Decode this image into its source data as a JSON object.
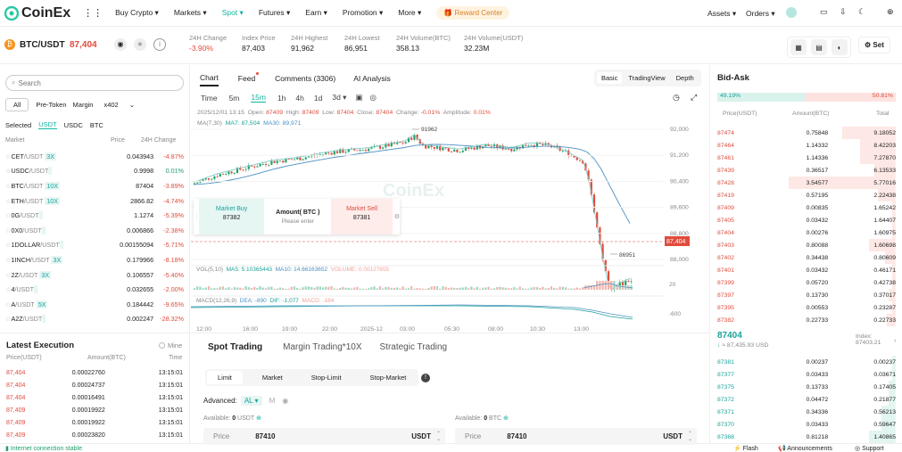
{
  "nav": {
    "brand": "CoinEx",
    "items": [
      "Buy Crypto",
      "Markets",
      "Spot",
      "Futures",
      "Earn",
      "Promotion",
      "More"
    ],
    "reward": "Reward Center",
    "assets": "Assets",
    "orders": "Orders"
  },
  "ticker": {
    "pair": "BTC/USDT",
    "price": "87,404",
    "stats": [
      {
        "label": "24H Change",
        "value": "-3.90%"
      },
      {
        "label": "Index Price",
        "value": "87,403"
      },
      {
        "label": "24H Highest",
        "value": "91,962"
      },
      {
        "label": "24H Lowest",
        "value": "86,951"
      },
      {
        "label": "24H Volume(BTC)",
        "value": "358.13"
      },
      {
        "label": "24H Volume(USDT)",
        "value": "32.23M"
      }
    ],
    "set": "Set"
  },
  "market": {
    "search_placeholder": "Search",
    "filters": [
      "All",
      "Pre-Token",
      "Margin",
      "x402"
    ],
    "quote_tabs": [
      "Selected",
      "USDT",
      "USDC",
      "BTC"
    ],
    "col_market": "Market",
    "col_price": "Price",
    "col_change": "24H Change",
    "rows": [
      {
        "base": "CET",
        "quote": "/USDT",
        "lev": "3X",
        "price": "0.043943",
        "change": "-4.87%"
      },
      {
        "base": "USDC",
        "quote": "/USDT",
        "lev": "",
        "price": "0.9998",
        "change": "0.01%"
      },
      {
        "base": "BTC",
        "quote": "/USDT",
        "lev": "10X",
        "price": "87404",
        "change": "-3.89%"
      },
      {
        "base": "ETH",
        "quote": "/USDT",
        "lev": "10X",
        "price": "2866.82",
        "change": "-4.74%"
      },
      {
        "base": "0G",
        "quote": "/USDT",
        "lev": "",
        "price": "1.1274",
        "change": "-5.39%"
      },
      {
        "base": "0X0",
        "quote": "/USDT",
        "lev": "",
        "price": "0.006866",
        "change": "-2.38%"
      },
      {
        "base": "1DOLLAR",
        "quote": "/USDT",
        "lev": "",
        "price": "0.00155094",
        "change": "-5.71%"
      },
      {
        "base": "1INCH",
        "quote": "/USDT",
        "lev": "3X",
        "price": "0.179966",
        "change": "-8.18%"
      },
      {
        "base": "2Z",
        "quote": "/USDT",
        "lev": "3X",
        "price": "0.106557",
        "change": "-5.40%"
      },
      {
        "base": "4",
        "quote": "/USDT",
        "lev": "",
        "price": "0.032655",
        "change": "-2.00%"
      },
      {
        "base": "A",
        "quote": "/USDT",
        "lev": "5X",
        "price": "0.184442",
        "change": "-9.65%"
      },
      {
        "base": "A2Z",
        "quote": "/USDT",
        "lev": "",
        "price": "0.002247",
        "change": "-28.32%"
      }
    ]
  },
  "latest": {
    "title": "Latest Execution",
    "mine": "Mine",
    "col_price": "Price(USDT)",
    "col_amount": "Amount(BTC)",
    "col_time": "Time",
    "rows": [
      {
        "price": "87,404",
        "amount": "0.00022760",
        "time": "13:15:01"
      },
      {
        "price": "87,404",
        "amount": "0.00024737",
        "time": "13:15:01"
      },
      {
        "price": "87,404",
        "amount": "0.00016491",
        "time": "13:15:01"
      },
      {
        "price": "87,409",
        "amount": "0.00019922",
        "time": "13:15:01"
      },
      {
        "price": "87,409",
        "amount": "0.00019922",
        "time": "13:15:01"
      },
      {
        "price": "87,409",
        "amount": "0.00023820",
        "time": "13:15:01"
      }
    ]
  },
  "status": {
    "conn": "Internet connection stable",
    "flash": "Flash",
    "announcements": "Announcements",
    "support": "Support"
  },
  "chart": {
    "tabs": [
      "Chart",
      "Feed",
      "Comments (3306)",
      "AI Analysis"
    ],
    "views": [
      "Basic",
      "TradingView",
      "Depth"
    ],
    "intervals": [
      "Time",
      "5m",
      "15m",
      "1h",
      "4h",
      "1d",
      "3d"
    ],
    "ohlc": {
      "date": "2025/12/01 13:15",
      "open": "87409",
      "high": "87409",
      "low": "87404",
      "close": "87404",
      "change": "-0.01%",
      "amplitude": "0.01%"
    },
    "ma": {
      "label": "MA(7,30)",
      "ma7": "MA7: 87,504",
      "ma30": "MA30: 89,971"
    },
    "vol": {
      "label": "VOL(5,10)",
      "ma5": "MA5: 5.10365443",
      "ma10": "MA10: 14.66163652",
      "volume": "VOLUME: 0.00127655"
    },
    "macd": {
      "label": "MACD(12,26,9)",
      "dea": "DEA: -890",
      "dif": "DIF: -1,077",
      "macd": "MACD: -184"
    },
    "yticks": [
      "92,000",
      "91,200",
      "90,400",
      "89,600",
      "88,800",
      "88,000"
    ],
    "vol_tick": "20",
    "macd_tick": "-600",
    "xticks": [
      "12:00",
      "16:00",
      "19:00",
      "22:00",
      "2025-12",
      "03:00",
      "05:30",
      "08:00",
      "10:30",
      "13:00"
    ],
    "hi_label": "91962",
    "lo_label": "86951",
    "last_price": "87,404",
    "watermark": "CoinEx",
    "quick": {
      "buy_label": "Market Buy",
      "buy_price": "87382",
      "amount_label": "Amount( BTC )",
      "amount_placeholder": "Please enter",
      "sell_label": "Market Sell",
      "sell_price": "87381"
    }
  },
  "trade": {
    "tabs": [
      "Spot Trading",
      "Margin Trading*10X",
      "Strategic Trading"
    ],
    "types": [
      "Limit",
      "Market",
      "Stop-Limit",
      "Stop-Market"
    ],
    "advanced": "Advanced:",
    "al": "AL",
    "m": "M",
    "avail_buy": "Available:",
    "avail_buy_val": "0",
    "avail_buy_unit": "USDT",
    "avail_sell": "Available:",
    "avail_sell_val": "0",
    "avail_sell_unit": "BTC",
    "price_label": "Price",
    "price_buy": "87410",
    "price_sell": "87410",
    "unit": "USDT"
  },
  "orderbook": {
    "title": "Bid-Ask",
    "buy_pct": "49.19%",
    "sell_pct": "50.81%",
    "col_price": "Price(USDT)",
    "col_amount": "Amount(BTC)",
    "col_total": "Total",
    "asks": [
      {
        "p": "87474",
        "a": "0.75848",
        "t": "9.18052",
        "d": 0.3
      },
      {
        "p": "87464",
        "a": "1.14332",
        "t": "8.42203",
        "d": 0.2
      },
      {
        "p": "87461",
        "a": "1.14336",
        "t": "7.27870",
        "d": 0.2
      },
      {
        "p": "87439",
        "a": "0.36517",
        "t": "6.13533",
        "d": 0.12
      },
      {
        "p": "87428",
        "a": "3.54577",
        "t": "5.77016",
        "d": 0.6
      },
      {
        "p": "87419",
        "a": "0.57195",
        "t": "2.22438",
        "d": 0.1
      },
      {
        "p": "87409",
        "a": "0.00835",
        "t": "1.65242",
        "d": 0.02
      },
      {
        "p": "87405",
        "a": "0.03432",
        "t": "1.64407",
        "d": 0.02
      },
      {
        "p": "87404",
        "a": "0.00276",
        "t": "1.60975",
        "d": 0.02
      },
      {
        "p": "87403",
        "a": "0.80088",
        "t": "1.60698",
        "d": 0.15
      },
      {
        "p": "87402",
        "a": "0.34438",
        "t": "0.80609",
        "d": 0.06
      },
      {
        "p": "87401",
        "a": "0.03432",
        "t": "0.46171",
        "d": 0.02
      },
      {
        "p": "87399",
        "a": "0.05720",
        "t": "0.42738",
        "d": 0.02
      },
      {
        "p": "87397",
        "a": "0.13730",
        "t": "0.37017",
        "d": 0.04
      },
      {
        "p": "87395",
        "a": "0.00553",
        "t": "0.23287",
        "d": 0.02
      },
      {
        "p": "87382",
        "a": "0.22733",
        "t": "0.22733",
        "d": 0.05
      }
    ],
    "mid_price": "87404",
    "mid_usd": "≈ 87,435.93  USD",
    "index_label": "Index:",
    "index_val": "87403.21",
    "bids": [
      {
        "p": "87381",
        "a": "0.00237",
        "t": "0.00237",
        "d": 0.02
      },
      {
        "p": "87377",
        "a": "0.03433",
        "t": "0.03671",
        "d": 0.02
      },
      {
        "p": "87375",
        "a": "0.13733",
        "t": "0.17405",
        "d": 0.04
      },
      {
        "p": "87372",
        "a": "0.04472",
        "t": "0.21877",
        "d": 0.04
      },
      {
        "p": "87371",
        "a": "0.34336",
        "t": "0.56213",
        "d": 0.08
      },
      {
        "p": "87370",
        "a": "0.03433",
        "t": "0.59647",
        "d": 0.08
      },
      {
        "p": "87368",
        "a": "0.81218",
        "t": "1.40865",
        "d": 0.15
      }
    ]
  }
}
